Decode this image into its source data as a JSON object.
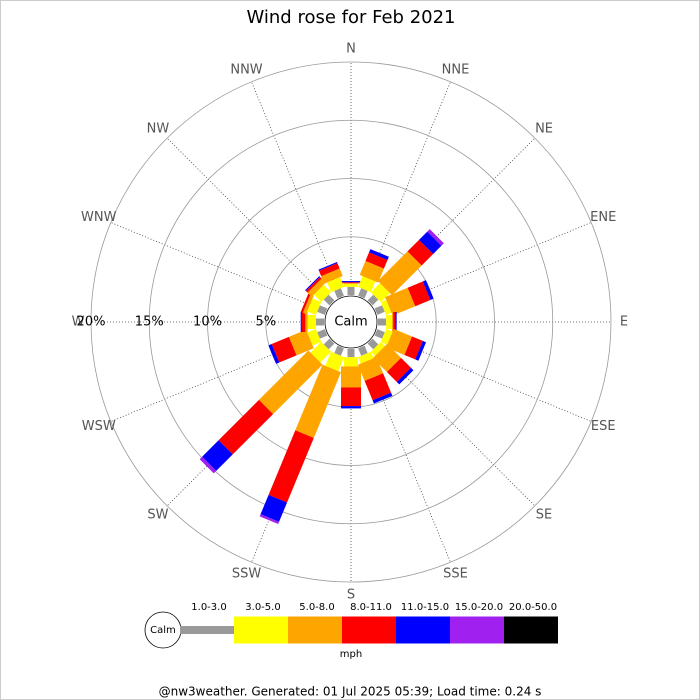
{
  "chart_data": {
    "type": "windrose",
    "title": "Wind rose for Feb 2021",
    "center_label": "Calm",
    "directions": [
      "N",
      "NNE",
      "NE",
      "ENE",
      "E",
      "ESE",
      "SE",
      "SSE",
      "S",
      "SSW",
      "SW",
      "WSW",
      "W",
      "WNW",
      "NW",
      "NNW"
    ],
    "rlim": [
      0,
      20
    ],
    "rticks": [
      {
        "value": 5,
        "label": "5%"
      },
      {
        "value": 10,
        "label": "10%"
      },
      {
        "value": 15,
        "label": "15%"
      },
      {
        "value": 20,
        "label": "20%"
      }
    ],
    "grid": true,
    "legend_unit": "mph",
    "series": [
      {
        "name": "1.0-3.0",
        "color": "#999999",
        "values": [
          0.7,
          0.7,
          0.7,
          0.7,
          0.7,
          0.7,
          0.7,
          0.7,
          0.7,
          0.7,
          0.7,
          0.7,
          0.7,
          0.7,
          0.7,
          0.7
        ]
      },
      {
        "name": "3.0-5.0",
        "color": "#ffff00",
        "values": [
          0.3,
          1.0,
          1.1,
          0.5,
          0.5,
          0.6,
          0.5,
          0.6,
          0.8,
          1.3,
          1.3,
          0.8,
          0.7,
          0.8,
          0.9,
          0.9
        ]
      },
      {
        "name": "5.0-8.0",
        "color": "#ffa500",
        "values": [
          0,
          1.3,
          3.6,
          2.1,
          0.1,
          1.7,
          1.7,
          1.5,
          1.8,
          6.1,
          6.0,
          1.6,
          0.2,
          0.3,
          0.5,
          0.7
        ]
      },
      {
        "name": "8.0-11.0",
        "color": "#ff0000",
        "values": [
          0.1,
          0.8,
          1.4,
          1.4,
          0.2,
          1.0,
          1.2,
          1.8,
          1.6,
          6.0,
          4.9,
          1.6,
          0.3,
          0.2,
          0.2,
          0.5
        ]
      },
      {
        "name": "11.0-15.0",
        "color": "#0000ff",
        "values": [
          0.1,
          0.3,
          1.0,
          0.3,
          0.1,
          0.3,
          0.3,
          0.3,
          0.2,
          1.8,
          2.0,
          0.3,
          0.1,
          0,
          0.1,
          0.1
        ]
      },
      {
        "name": "15.0-20.0",
        "color": "#a020f0",
        "values": [
          0,
          0,
          0.3,
          0,
          0,
          0,
          0,
          0,
          0,
          0.2,
          0.3,
          0,
          0,
          0,
          0,
          0
        ]
      },
      {
        "name": "20.0-50.0",
        "color": "#000000",
        "values": [
          0,
          0,
          0,
          0,
          0,
          0,
          0,
          0,
          0,
          0,
          0,
          0,
          0,
          0,
          0,
          0
        ]
      }
    ],
    "footer": "@nw3weather. Generated: 01 Jul 2025 05:39; Load time: 0.24 s"
  }
}
